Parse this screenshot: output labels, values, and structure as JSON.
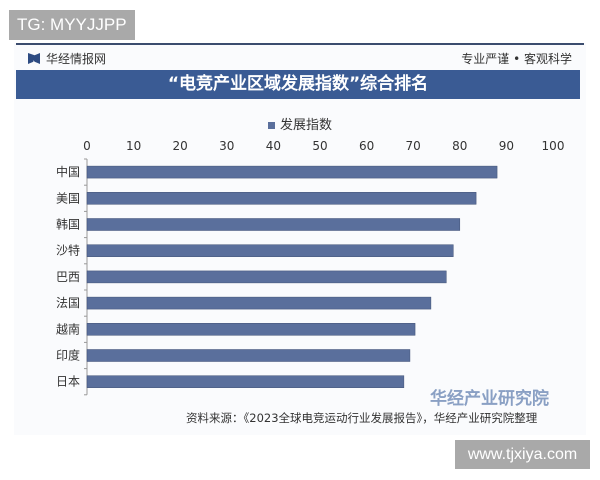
{
  "overlay_tag": "TG: MYYJJPP",
  "overlay_site": "www.tjxiya.com",
  "header": {
    "brand": "华经情报网",
    "slogan": "专业严谨 • 客观科学"
  },
  "watermark": "华经产业研究院",
  "source": "资料来源：《2023全球电竞运动行业发展报告》，华经产业研究院整理",
  "colors": {
    "bar": "#5a6f9c",
    "title_bg": "#3a5b94"
  },
  "chart_data": {
    "type": "bar",
    "orientation": "horizontal",
    "title": "“电竞产业区域发展指数”综合排名",
    "categories": [
      "中国",
      "美国",
      "韩国",
      "沙特",
      "巴西",
      "法国",
      "越南",
      "印度",
      "日本"
    ],
    "series": [
      {
        "name": "发展指数",
        "values": [
          88,
          83.5,
          80,
          78.6,
          77.1,
          73.8,
          70.4,
          69.3,
          68
        ]
      }
    ],
    "xlim": [
      0,
      100
    ],
    "xticks": [
      0,
      10,
      20,
      30,
      40,
      50,
      60,
      70,
      80,
      90,
      100
    ],
    "xaxis_position": "top",
    "grid": false,
    "legend": "top-center"
  }
}
